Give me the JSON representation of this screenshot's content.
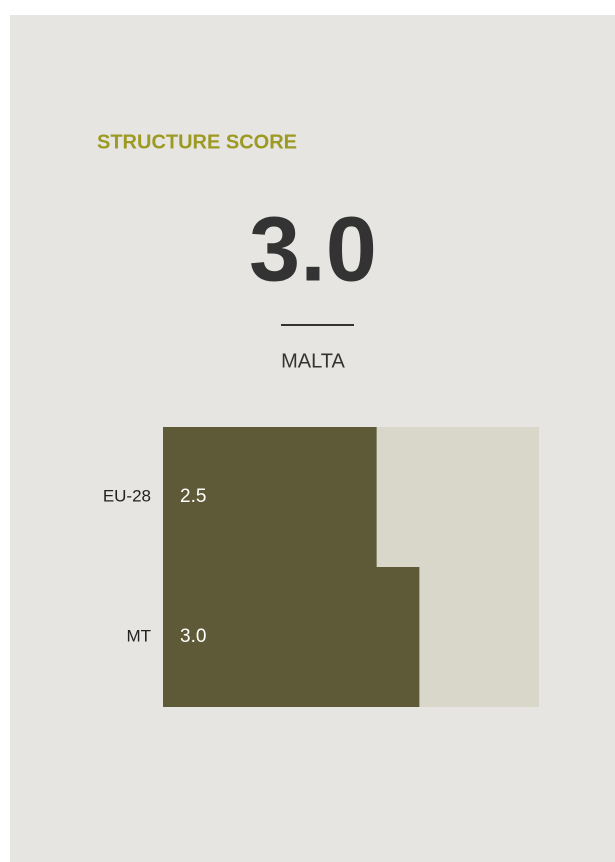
{
  "title": "STRUCTURE SCORE",
  "score": "3.0",
  "country": "MALTA",
  "chart_data": {
    "type": "bar",
    "orientation": "horizontal",
    "categories": [
      "EU-28",
      "MT"
    ],
    "values": [
      2.5,
      3
    ],
    "value_labels": [
      "2.5",
      "3.0"
    ],
    "color": "#5e5a37",
    "background_color": "#d9d7c9",
    "xlim": [
      0,
      4.4
    ]
  }
}
